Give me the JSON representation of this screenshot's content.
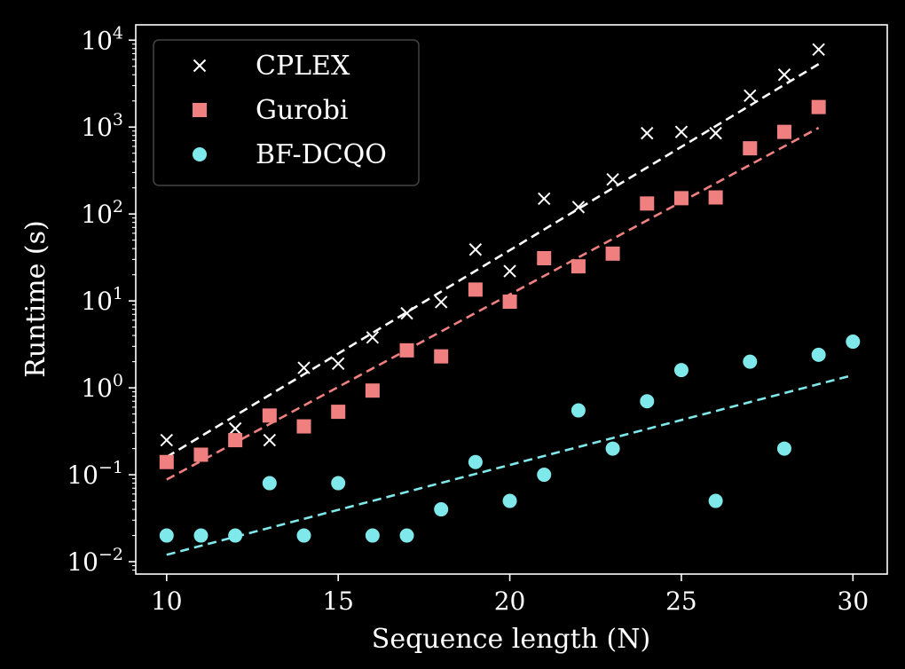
{
  "chart_data": {
    "type": "scatter",
    "xlabel": "Sequence length (N)",
    "ylabel": "Runtime (s)",
    "xlim": [
      9.1,
      31.0
    ],
    "ylim": [
      0.0072,
      15000
    ],
    "xscale": "linear",
    "yscale": "log",
    "xticks": [
      10,
      15,
      20,
      25,
      30
    ],
    "yticks": [
      {
        "value": 0.01,
        "base": "10",
        "exp": "−2"
      },
      {
        "value": 0.1,
        "base": "10",
        "exp": "−1"
      },
      {
        "value": 1,
        "base": "10",
        "exp": "0"
      },
      {
        "value": 10,
        "base": "10",
        "exp": "1"
      },
      {
        "value": 100,
        "base": "10",
        "exp": "2"
      },
      {
        "value": 1000,
        "base": "10",
        "exp": "3"
      },
      {
        "value": 10000,
        "base": "10",
        "exp": "4"
      }
    ],
    "grid": false,
    "legend_position": "top-left",
    "series": [
      {
        "name": "CPLEX",
        "marker": "x",
        "color": "#ffffff",
        "x": [
          10,
          11,
          12,
          13,
          14,
          15,
          16,
          17,
          18,
          19,
          20,
          21,
          22,
          23,
          24,
          25,
          26,
          27,
          28,
          29
        ],
        "y": [
          0.25,
          0.17,
          0.34,
          0.25,
          1.7,
          1.9,
          3.8,
          7.2,
          9.7,
          39,
          22,
          150,
          120,
          250,
          850,
          880,
          850,
          2300,
          4000,
          7800
        ],
        "fit": {
          "x": [
            10,
            29
          ],
          "y": [
            0.16,
            5300
          ]
        }
      },
      {
        "name": "Gurobi",
        "marker": "square",
        "color": "#f08080",
        "x": [
          10,
          11,
          12,
          13,
          14,
          15,
          16,
          17,
          18,
          19,
          20,
          21,
          22,
          23,
          24,
          25,
          26,
          27,
          28,
          29
        ],
        "y": [
          0.14,
          0.17,
          0.25,
          0.48,
          0.36,
          0.53,
          0.93,
          2.7,
          2.3,
          13.5,
          9.8,
          31,
          25,
          35,
          132,
          152,
          155,
          570,
          880,
          1700
        ],
        "fit": {
          "x": [
            10,
            29
          ],
          "y": [
            0.088,
            980
          ]
        }
      },
      {
        "name": "BF-DCQO",
        "marker": "circle",
        "color": "#7fe8ea",
        "x": [
          10,
          11,
          12,
          13,
          14,
          15,
          16,
          17,
          18,
          19,
          20,
          21,
          22,
          23,
          24,
          25,
          26,
          27,
          28,
          29,
          30
        ],
        "y": [
          0.02,
          0.02,
          0.02,
          0.08,
          0.02,
          0.08,
          0.02,
          0.02,
          0.04,
          0.14,
          0.05,
          0.1,
          0.55,
          0.2,
          0.7,
          1.6,
          0.05,
          2.0,
          0.2,
          2.4,
          3.4
        ],
        "fit": {
          "x": [
            10,
            30
          ],
          "y": [
            0.012,
            1.4
          ]
        }
      }
    ]
  }
}
